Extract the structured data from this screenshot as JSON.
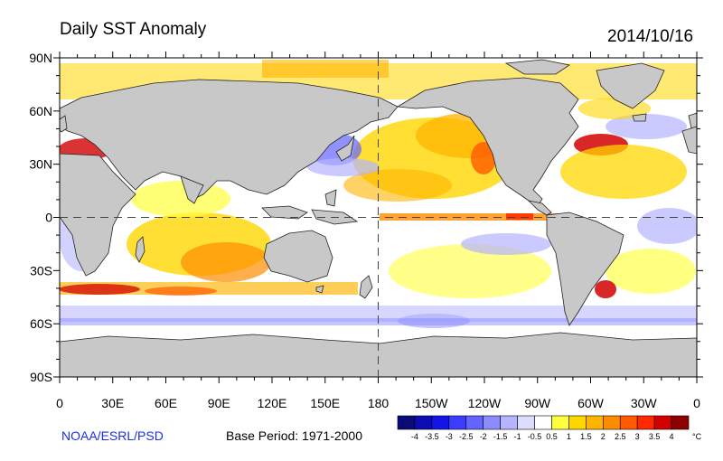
{
  "header": {
    "title": "Daily SST Anomaly",
    "date": "2014/10/16"
  },
  "footer": {
    "credit": "NOAA/ESRL/PSD",
    "base_period": "Base Period: 1971-2000"
  },
  "axes": {
    "lat_labels": [
      "90N",
      "60N",
      "30N",
      "0",
      "30S",
      "60S",
      "90S"
    ],
    "lon_labels": [
      "0",
      "30E",
      "60E",
      "90E",
      "120E",
      "150E",
      "180",
      "150W",
      "120W",
      "90W",
      "60W",
      "30W",
      "0"
    ]
  },
  "colorbar": {
    "unit": "°C",
    "tick_labels": [
      "-4",
      "-3.5",
      "-3",
      "-2.5",
      "-2",
      "-1.5",
      "-1",
      "-0.5",
      "0.5",
      "1",
      "1.5",
      "2",
      "2.5",
      "3",
      "3.5",
      "4"
    ],
    "colors": [
      "#0a0a78",
      "#0c0cb4",
      "#1414e6",
      "#3c3cff",
      "#6464ff",
      "#8c8cff",
      "#b4b4ff",
      "#dcdcff",
      "#ffffff",
      "#ffff3c",
      "#ffd700",
      "#ffb400",
      "#ff8c00",
      "#ff5a00",
      "#ff2800",
      "#d20000",
      "#8c0000"
    ]
  },
  "colors": {
    "land": "#c8c8c8",
    "ocean_neutral": "#ffffff",
    "credit_text": "#1a2ee8"
  }
}
